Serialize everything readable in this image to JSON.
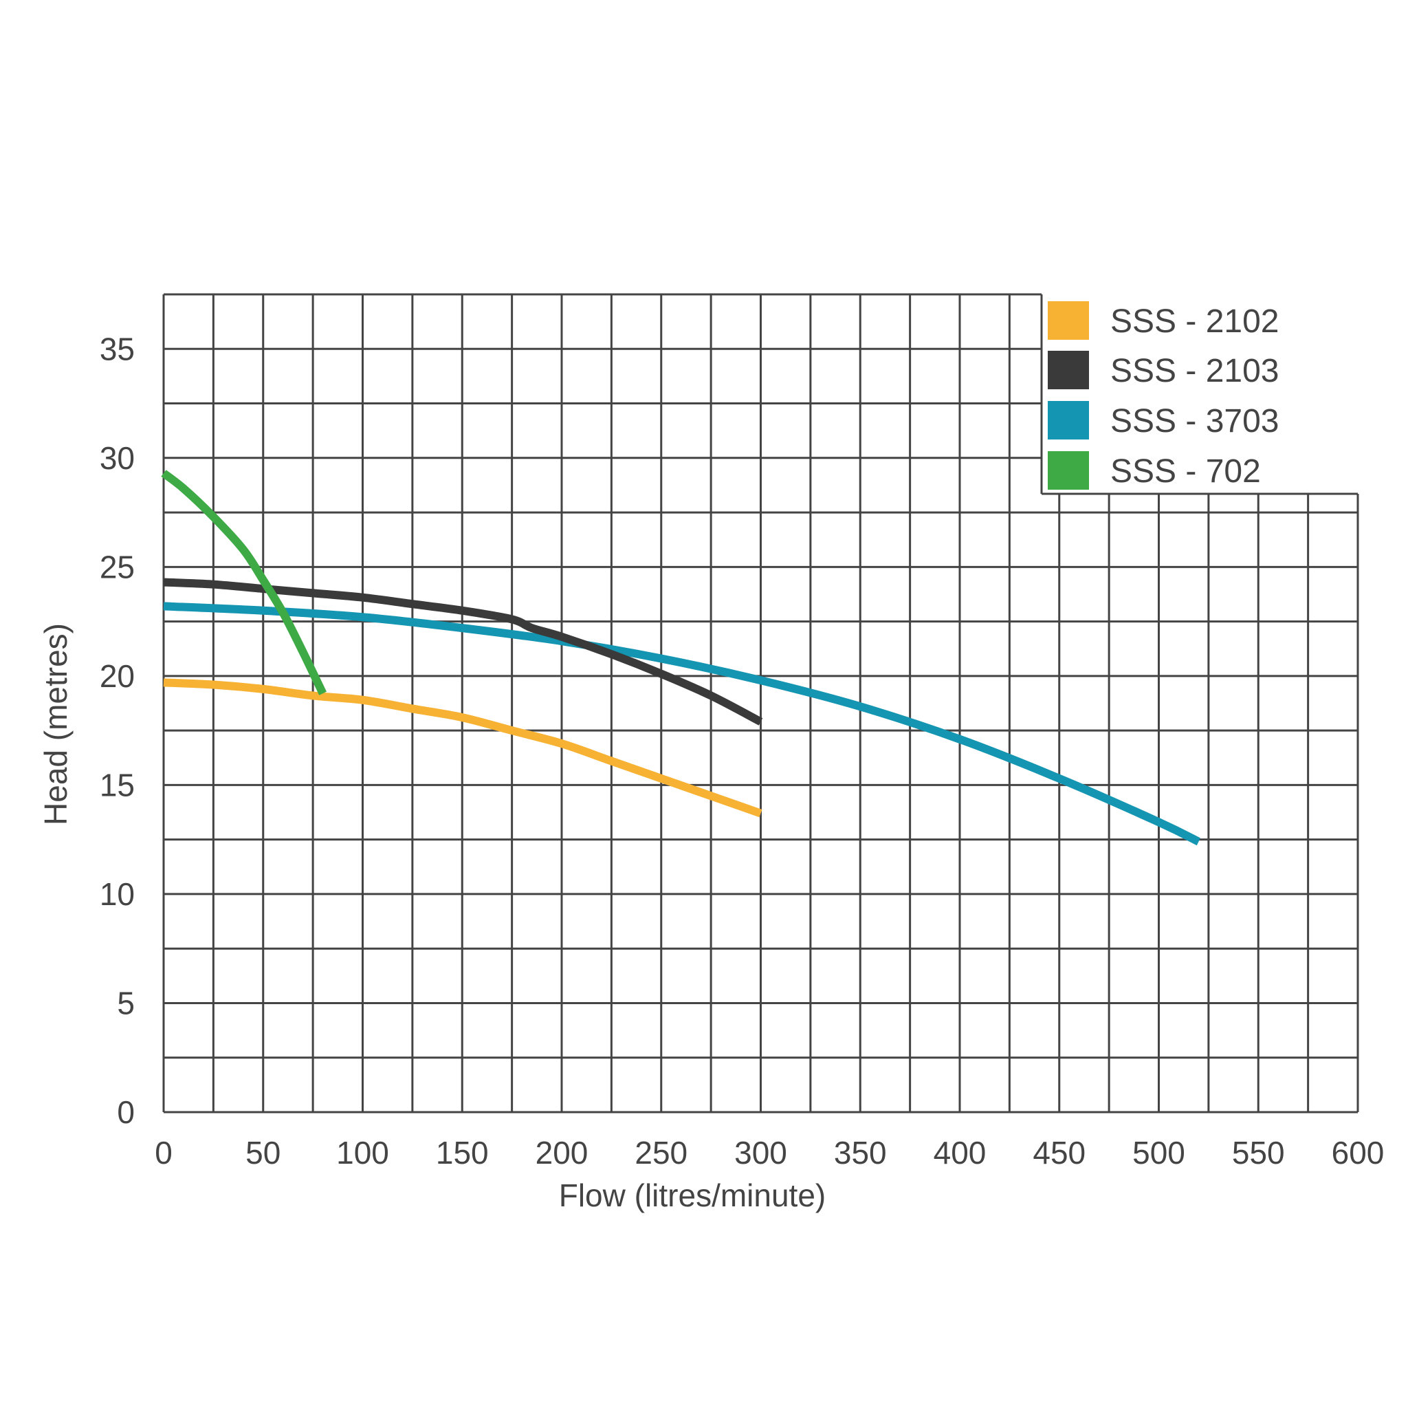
{
  "chart_data": {
    "type": "line",
    "title": "",
    "xlabel": "Flow (litres/minute)",
    "ylabel": "Head (metres)",
    "xlim": [
      0,
      600
    ],
    "ylim": [
      0,
      37.5
    ],
    "x_ticks": [
      0,
      50,
      100,
      150,
      200,
      250,
      300,
      350,
      400,
      450,
      500,
      550,
      600
    ],
    "y_ticks": [
      0,
      5,
      10,
      15,
      20,
      25,
      30,
      35
    ],
    "x_tick_labels": [
      "0",
      "50",
      "100",
      "150",
      "200",
      "250",
      "300",
      "350",
      "400",
      "450",
      "500",
      "550",
      "600"
    ],
    "y_tick_labels": [
      "0",
      "5",
      "10",
      "15",
      "20",
      "25",
      "30",
      "35"
    ],
    "grid": true,
    "legend_position": "top-right",
    "series": [
      {
        "name": "SSS - 2102",
        "color": "#F7B233",
        "x": [
          0,
          25,
          50,
          75,
          100,
          125,
          150,
          175,
          200,
          225,
          250,
          275,
          300
        ],
        "y": [
          19.7,
          19.6,
          19.4,
          19.1,
          18.9,
          18.5,
          18.1,
          17.5,
          16.9,
          16.1,
          15.3,
          14.5,
          13.7
        ]
      },
      {
        "name": "SSS - 2103",
        "color": "#3A3A3A",
        "x": [
          0,
          25,
          50,
          75,
          100,
          125,
          150,
          175,
          185,
          200,
          225,
          250,
          275,
          300
        ],
        "y": [
          24.3,
          24.2,
          24.0,
          23.8,
          23.6,
          23.3,
          23.0,
          22.6,
          22.2,
          21.8,
          21.0,
          20.1,
          19.1,
          17.9
        ]
      },
      {
        "name": "SSS - 3703",
        "color": "#1495B1",
        "x": [
          0,
          50,
          100,
          150,
          200,
          250,
          300,
          350,
          400,
          450,
          500,
          520
        ],
        "y": [
          23.2,
          23.0,
          22.7,
          22.2,
          21.6,
          20.8,
          19.8,
          18.6,
          17.1,
          15.3,
          13.3,
          12.4
        ]
      },
      {
        "name": "SSS - 702",
        "color": "#3DAA45",
        "x": [
          0,
          10,
          25,
          40,
          50,
          60,
          70,
          80
        ],
        "y": [
          29.3,
          28.6,
          27.3,
          25.8,
          24.4,
          22.9,
          21.1,
          19.2
        ]
      }
    ]
  }
}
